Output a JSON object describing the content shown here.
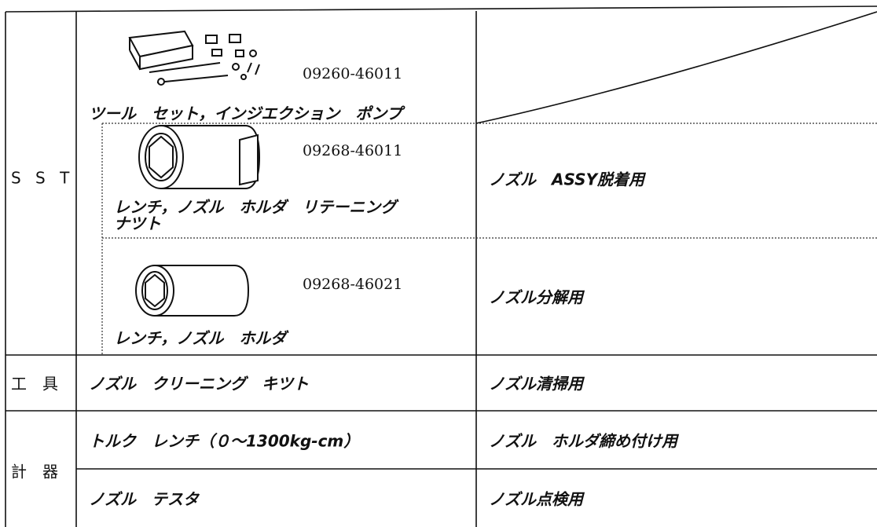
{
  "rows": [
    {
      "category": "S S T",
      "items": [
        {
          "part_number": "09260-46011",
          "name": "ツール　セット，インジエクション　ポンプ"
        },
        {
          "part_number": "09268-46011",
          "name_lines": [
            "レンチ，ノズル　ホルダ　リテーニング",
            "ナツト"
          ],
          "use": "ノズル　ASSY脱着用"
        },
        {
          "part_number": "09268-46021",
          "name": "レンチ，ノズル　ホルダ",
          "use": "ノズル分解用"
        }
      ]
    },
    {
      "category": "工　具",
      "items": [
        {
          "name": "ノズル　クリーニング　キツト",
          "use": "ノズル清掃用"
        }
      ]
    },
    {
      "category": "計　器",
      "items": [
        {
          "name": "トルク　レンチ（０～1300kg-cm）",
          "use": "ノズル　ホルダ締め付け用"
        },
        {
          "name": "ノズル　テスタ",
          "use": "ノズル点検用"
        }
      ]
    }
  ]
}
